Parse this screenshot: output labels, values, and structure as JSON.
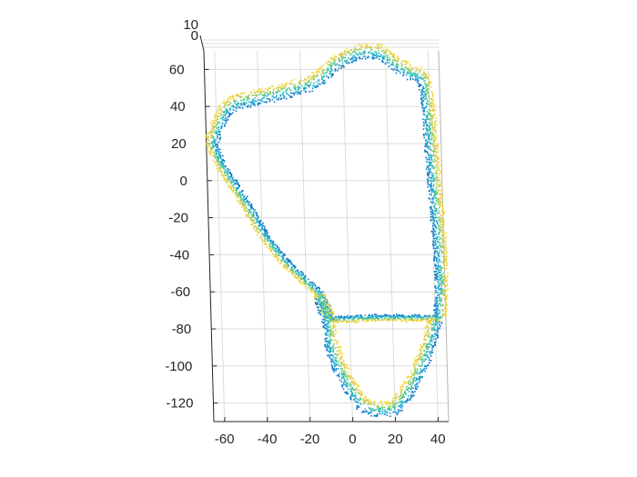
{
  "chart_data": {
    "type": "scatter",
    "title": "",
    "xlabel": "",
    "ylabel": "",
    "zlabel": "",
    "xlim": [
      -65,
      45
    ],
    "ylim": [
      -130,
      70
    ],
    "zlim": [
      0,
      10
    ],
    "x_ticks": [
      -60,
      -40,
      -20,
      0,
      20,
      40
    ],
    "y_ticks": [
      -120,
      -100,
      -80,
      -60,
      -40,
      -20,
      0,
      20,
      40,
      60
    ],
    "z_ticks": [
      0,
      10
    ],
    "grid": true,
    "colormap": [
      "#0072BD",
      "#1F8FD8",
      "#17B1C8",
      "#3FC59A",
      "#A7CF5A",
      "#E9C94A",
      "#FBDF2A"
    ],
    "series": [
      {
        "outline": [
          [
            -63,
            20
          ],
          [
            -56,
            38
          ],
          [
            -50,
            42
          ],
          [
            -30,
            47
          ],
          [
            -15,
            52
          ],
          [
            -10,
            56
          ],
          [
            -5,
            62
          ],
          [
            0,
            65
          ],
          [
            5,
            68
          ],
          [
            10,
            69
          ],
          [
            14,
            69
          ],
          [
            18,
            68
          ],
          [
            22,
            64
          ],
          [
            30,
            58
          ],
          [
            36,
            56
          ],
          [
            38,
            52
          ],
          [
            39,
            40
          ],
          [
            40,
            20
          ],
          [
            41,
            0
          ],
          [
            42,
            -20
          ],
          [
            43,
            -40
          ],
          [
            43,
            -60
          ],
          [
            42,
            -75
          ],
          [
            30,
            -75
          ],
          [
            10,
            -75
          ],
          [
            -10,
            -76
          ],
          [
            -14,
            -63
          ],
          [
            -16,
            -60
          ],
          [
            -20,
            -56
          ],
          [
            -30,
            -45
          ],
          [
            -40,
            -30
          ],
          [
            -47,
            -15
          ],
          [
            -55,
            0
          ],
          [
            -60,
            10
          ],
          [
            -63,
            20
          ]
        ]
      },
      {
        "outline": [
          [
            -14,
            -63
          ],
          [
            -10,
            -76
          ],
          [
            -10,
            -86
          ],
          [
            -7,
            -98
          ],
          [
            -2,
            -110
          ],
          [
            5,
            -122
          ],
          [
            10,
            -124
          ],
          [
            18,
            -124
          ],
          [
            22,
            -120
          ],
          [
            28,
            -110
          ],
          [
            34,
            -96
          ],
          [
            38,
            -82
          ],
          [
            40,
            -75
          ]
        ]
      }
    ],
    "annotations": []
  }
}
